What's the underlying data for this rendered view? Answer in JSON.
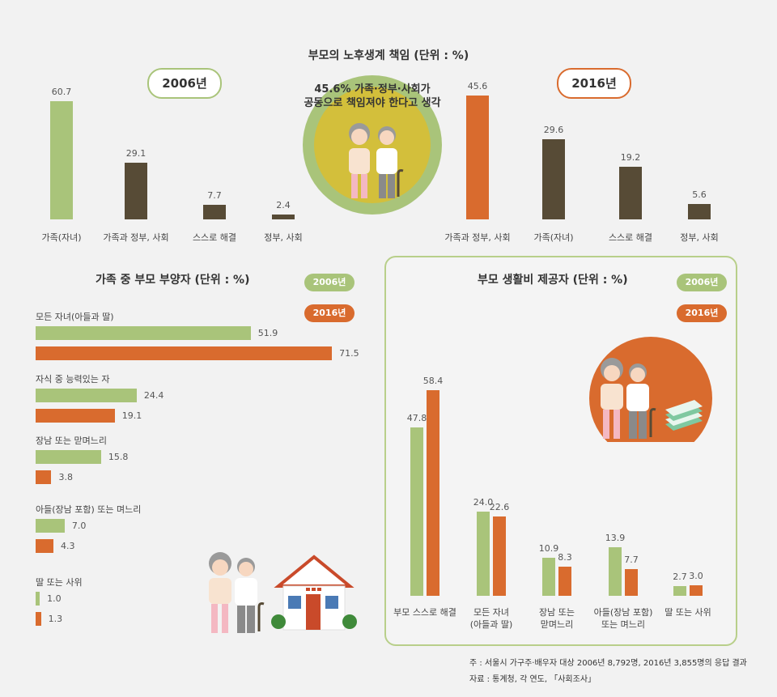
{
  "title_main": "부모의 노후생계 책임 (단위 : %)",
  "callout_line1": "45.6% 가족·정부·사회가",
  "callout_line2": "공동으로 책임져야 한다고 생각",
  "colors": {
    "y2006": "#a9c47a",
    "y2016": "#d96b2e",
    "dark": "#574b36"
  },
  "chart_data": [
    {
      "type": "bar",
      "title": "2006년",
      "categories": [
        "가족(자녀)",
        "가족과 정부, 사회",
        "스스로 해결",
        "정부, 사회"
      ],
      "values": [
        60.7,
        29.1,
        7.7,
        2.4
      ],
      "labels": [
        "60.7",
        "29.1",
        "7.7",
        "2.4"
      ]
    },
    {
      "type": "bar",
      "title": "2016년",
      "categories": [
        "가족과 정부, 사회",
        "가족(자녀)",
        "스스로 해결",
        "정부, 사회"
      ],
      "values": [
        45.6,
        29.6,
        19.2,
        5.6
      ],
      "labels": [
        "45.6",
        "29.6",
        "19.2",
        "5.6"
      ]
    },
    {
      "type": "bar",
      "title": "가족 중 부모 부양자 (단위 : %)",
      "legend": [
        "2006년",
        "2016년"
      ],
      "categories": [
        "모든 자녀(아들과 딸)",
        "자식 중 능력있는 자",
        "장남 또는 맏며느리",
        "아들(장남 포함) 또는 며느리",
        "딸 또는 사위"
      ],
      "series": [
        {
          "name": "2006년",
          "values": [
            51.9,
            24.4,
            15.8,
            7.0,
            1.0
          ],
          "labels": [
            "51.9",
            "24.4",
            "15.8",
            "7.0",
            "1.0"
          ]
        },
        {
          "name": "2016년",
          "values": [
            71.5,
            19.1,
            3.8,
            4.3,
            1.3
          ],
          "labels": [
            "71.5",
            "19.1",
            "3.8",
            "4.3",
            "1.3"
          ]
        }
      ]
    },
    {
      "type": "bar",
      "title": "부모 생활비 제공자 (단위 : %)",
      "legend": [
        "2006년",
        "2016년"
      ],
      "categories": [
        "부모 스스로 해결",
        "모든 자녀 (아들과 딸)",
        "장남 또는 맏며느리",
        "아들(장남 포함) 또는 며느리",
        "딸 또는 사위"
      ],
      "category_lines": [
        [
          "부모 스스로 해결"
        ],
        [
          "모든 자녀",
          "(아들과 딸)"
        ],
        [
          "장남 또는",
          "맏며느리"
        ],
        [
          "아들(장남 포함)",
          "또는 며느리"
        ],
        [
          "딸 또는 사위"
        ]
      ],
      "series": [
        {
          "name": "2006년",
          "values": [
            47.8,
            24.0,
            10.9,
            13.9,
            2.7
          ],
          "labels": [
            "47.8",
            "24.0",
            "10.9",
            "13.9",
            "2.7"
          ]
        },
        {
          "name": "2016년",
          "values": [
            58.4,
            22.6,
            8.3,
            7.7,
            3.0
          ],
          "labels": [
            "58.4",
            "22.6",
            "8.3",
            "7.7",
            "3.0"
          ]
        }
      ]
    }
  ],
  "footnote1": "주 : 서울시 가구주·배우자 대상 2006년 8,792명, 2016년 3,855명의 응답 결과",
  "footnote2": "자료 : 통계청, 각 연도, 「사회조사」"
}
